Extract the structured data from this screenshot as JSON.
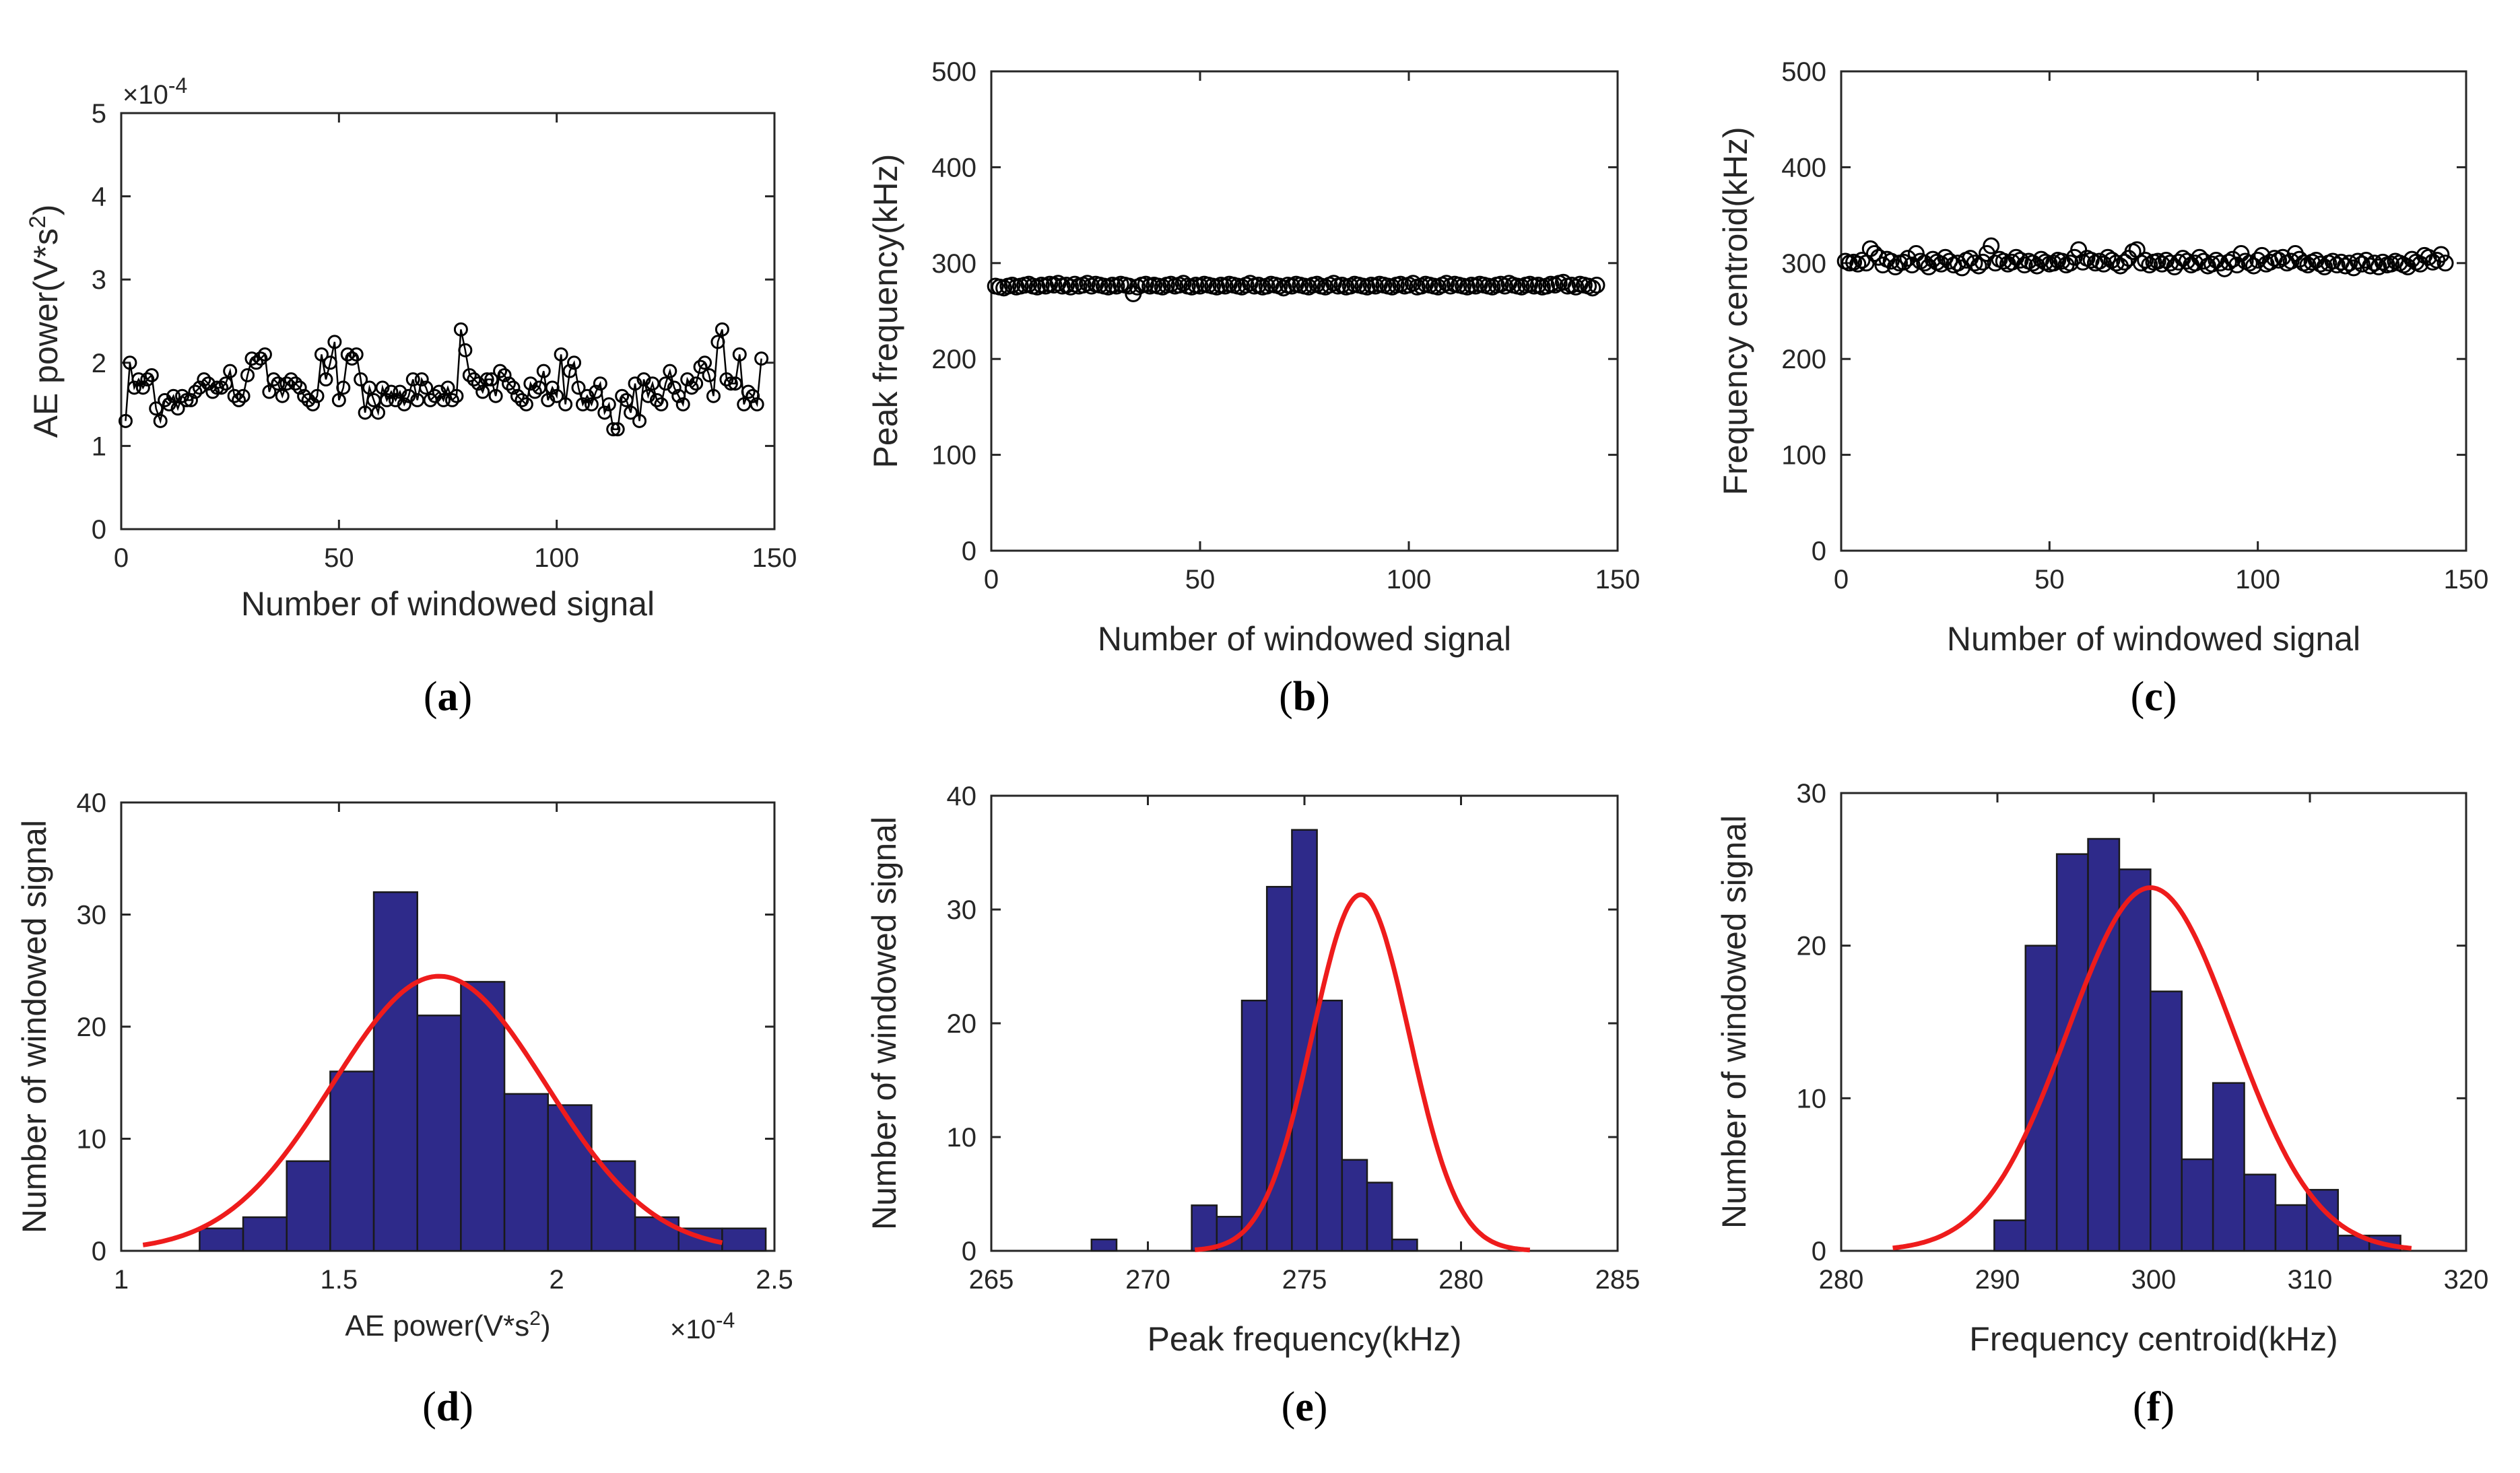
{
  "chart_data": [
    {
      "id": "a",
      "type": "line",
      "panel_label": "a",
      "title": "",
      "xlabel": "Number of windowed signal",
      "ylabel_base": "AE power(V*s",
      "ylabel_sup": "2",
      "ylabel_end": ")",
      "exponent_label": "×10",
      "exponent_power": "-4",
      "xlim": [
        0,
        150
      ],
      "ylim": [
        0,
        5
      ],
      "xticks": [
        0,
        50,
        100,
        150
      ],
      "yticks": [
        0,
        1,
        2,
        3,
        4,
        5
      ],
      "marker": "circle",
      "line": true,
      "series": [
        {
          "name": "AE power",
          "values": [
            1.3,
            2.0,
            1.7,
            1.8,
            1.7,
            1.8,
            1.85,
            1.45,
            1.3,
            1.55,
            1.5,
            1.6,
            1.45,
            1.6,
            1.55,
            1.55,
            1.65,
            1.7,
            1.8,
            1.75,
            1.65,
            1.7,
            1.7,
            1.75,
            1.9,
            1.6,
            1.55,
            1.6,
            1.85,
            2.05,
            2.0,
            2.05,
            2.1,
            1.65,
            1.8,
            1.75,
            1.6,
            1.75,
            1.8,
            1.75,
            1.7,
            1.6,
            1.55,
            1.5,
            1.6,
            2.1,
            1.8,
            2.0,
            2.25,
            1.55,
            1.7,
            2.1,
            2.05,
            2.1,
            1.8,
            1.4,
            1.7,
            1.55,
            1.4,
            1.7,
            1.55,
            1.65,
            1.55,
            1.65,
            1.5,
            1.6,
            1.8,
            1.55,
            1.8,
            1.7,
            1.55,
            1.6,
            1.65,
            1.55,
            1.7,
            1.55,
            1.6,
            2.4,
            2.15,
            1.85,
            1.8,
            1.75,
            1.65,
            1.8,
            1.8,
            1.6,
            1.9,
            1.85,
            1.75,
            1.7,
            1.6,
            1.55,
            1.5,
            1.75,
            1.65,
            1.7,
            1.9,
            1.55,
            1.7,
            1.6,
            2.1,
            1.5,
            1.9,
            2.0,
            1.7,
            1.5,
            1.6,
            1.5,
            1.65,
            1.75,
            1.4,
            1.5,
            1.2,
            1.2,
            1.6,
            1.55,
            1.4,
            1.75,
            1.3,
            1.8,
            1.6,
            1.75,
            1.55,
            1.5,
            1.75,
            1.9,
            1.7,
            1.6,
            1.5,
            1.8,
            1.7,
            1.75,
            1.95,
            2.0,
            1.85,
            1.6,
            2.25,
            2.4,
            1.8,
            1.75,
            1.75,
            2.1,
            1.5,
            1.65,
            1.6,
            1.5,
            2.05
          ]
        }
      ]
    },
    {
      "id": "b",
      "type": "scatter",
      "panel_label": "b",
      "title": "",
      "xlabel": "Number of windowed signal",
      "ylabel": "Peak frequency(kHz)",
      "xlim": [
        0,
        150
      ],
      "ylim": [
        0,
        500
      ],
      "xticks": [
        0,
        50,
        100,
        150
      ],
      "yticks": [
        0,
        100,
        200,
        300,
        400,
        500
      ],
      "marker": "circle",
      "line": false,
      "series": [
        {
          "name": "Peak frequency",
          "values": [
            276,
            275,
            274,
            276,
            277,
            275,
            276,
            277,
            278,
            276,
            275,
            277,
            276,
            278,
            277,
            279,
            276,
            277,
            275,
            278,
            276,
            277,
            279,
            276,
            278,
            277,
            276,
            275,
            277,
            276,
            278,
            277,
            276,
            268,
            275,
            277,
            278,
            276,
            277,
            276,
            275,
            277,
            278,
            276,
            277,
            279,
            276,
            275,
            277,
            276,
            278,
            277,
            276,
            275,
            277,
            276,
            278,
            277,
            276,
            275,
            277,
            279,
            276,
            277,
            275,
            276,
            278,
            277,
            276,
            274,
            277,
            276,
            278,
            277,
            276,
            275,
            277,
            278,
            276,
            275,
            277,
            279,
            276,
            277,
            275,
            276,
            278,
            277,
            276,
            275,
            277,
            276,
            278,
            277,
            276,
            275,
            277,
            278,
            276,
            277,
            279,
            275,
            276,
            278,
            277,
            276,
            275,
            277,
            279,
            276,
            278,
            277,
            276,
            275,
            277,
            276,
            278,
            277,
            276,
            275,
            277,
            278,
            276,
            279,
            277,
            276,
            275,
            277,
            278,
            276,
            277,
            275,
            276,
            278,
            277,
            279,
            280,
            276,
            277,
            275,
            278,
            277,
            276,
            274,
            277
          ]
        }
      ]
    },
    {
      "id": "c",
      "type": "scatter",
      "panel_label": "c",
      "title": "",
      "xlabel": "Number of windowed signal",
      "ylabel": "Frequency centroid(kHz)",
      "xlim": [
        0,
        150
      ],
      "ylim": [
        0,
        500
      ],
      "xticks": [
        0,
        50,
        100,
        150
      ],
      "yticks": [
        0,
        100,
        200,
        300,
        400,
        500
      ],
      "marker": "circle",
      "line": false,
      "series": [
        {
          "name": "Frequency centroid",
          "values": [
            302,
            300,
            301,
            299,
            303,
            300,
            315,
            310,
            306,
            298,
            304,
            302,
            296,
            300,
            301,
            305,
            298,
            310,
            302,
            300,
            296,
            304,
            301,
            299,
            306,
            302,
            298,
            300,
            295,
            303,
            305,
            300,
            297,
            301,
            310,
            318,
            300,
            304,
            302,
            299,
            301,
            306,
            303,
            298,
            302,
            300,
            297,
            304,
            301,
            299,
            300,
            303,
            302,
            298,
            300,
            306,
            314,
            301,
            305,
            303,
            300,
            302,
            299,
            306,
            303,
            300,
            297,
            301,
            305,
            312,
            314,
            300,
            303,
            298,
            301,
            302,
            299,
            303,
            300,
            296,
            301,
            305,
            302,
            298,
            300,
            306,
            302,
            297,
            299,
            303,
            300,
            294,
            301,
            304,
            298,
            310,
            302,
            300,
            297,
            303,
            308,
            299,
            301,
            305,
            303,
            306,
            300,
            302,
            310,
            304,
            300,
            298,
            301,
            303,
            299,
            296,
            300,
            302,
            298,
            301,
            297,
            300,
            295,
            302,
            299,
            303,
            297,
            300,
            296,
            301,
            298,
            299,
            302,
            300,
            298,
            296,
            304,
            301,
            299,
            308,
            306,
            301,
            303,
            309,
            300
          ]
        }
      ]
    },
    {
      "id": "d",
      "type": "bar",
      "panel_label": "d",
      "title": "",
      "xlabel_base": "AE power(V*s",
      "xlabel_sup": "2",
      "xlabel_end": ")",
      "exponent_label": "×10",
      "exponent_power": "-4",
      "ylabel": "Number of windowed signal",
      "xlim": [
        1,
        2.5
      ],
      "ylim": [
        0,
        40
      ],
      "xticks": [
        1,
        1.5,
        2,
        2.5
      ],
      "yticks": [
        0,
        10,
        20,
        30,
        40
      ],
      "bins": {
        "start": 1.18,
        "width": 0.1,
        "counts": [
          2,
          3,
          8,
          16,
          32,
          21,
          24,
          14,
          13,
          8,
          3,
          2,
          2
        ]
      },
      "fit": {
        "type": "normal",
        "mean": 1.73,
        "sd": 0.245,
        "peak": 24.5,
        "range": [
          1.05,
          2.38
        ]
      },
      "bar_color": "#2e2a8a",
      "fit_color": "#ee1c1c"
    },
    {
      "id": "e",
      "type": "bar",
      "panel_label": "e",
      "title": "",
      "xlabel": "Peak frequency(kHz)",
      "ylabel": "Number of windowed signal",
      "xlim": [
        265,
        285
      ],
      "ylim": [
        0,
        40
      ],
      "xticks": [
        265,
        270,
        275,
        280,
        285
      ],
      "yticks": [
        0,
        10,
        20,
        30,
        40
      ],
      "bins": {
        "start": 268.2,
        "width": 0.8,
        "counts": [
          1,
          0,
          0,
          0,
          4,
          3,
          22,
          32,
          37,
          22,
          8,
          6,
          1
        ]
      },
      "fit": {
        "type": "normal",
        "mean": 276.8,
        "sd": 1.55,
        "peak": 31.3,
        "range": [
          271.5,
          282.2
        ]
      },
      "bar_color": "#2e2a8a",
      "fit_color": "#ee1c1c"
    },
    {
      "id": "f",
      "type": "bar",
      "panel_label": "f",
      "title": "",
      "xlabel": "Frequency centroid(kHz)",
      "ylabel": "Number of windowed signal",
      "xlim": [
        280,
        320
      ],
      "ylim": [
        0,
        30
      ],
      "xticks": [
        280,
        290,
        300,
        310,
        320
      ],
      "yticks": [
        0,
        10,
        20,
        30
      ],
      "bins": {
        "start": 289.8,
        "width": 2.0,
        "counts": [
          2,
          20,
          26,
          27,
          25,
          17,
          6,
          11,
          5,
          3,
          4,
          1,
          1
        ]
      },
      "fit": {
        "type": "normal",
        "mean": 299.8,
        "sd": 5.3,
        "peak": 23.8,
        "range": [
          283.3,
          316.5
        ]
      },
      "bar_color": "#2e2a8a",
      "fit_color": "#ee1c1c"
    }
  ]
}
